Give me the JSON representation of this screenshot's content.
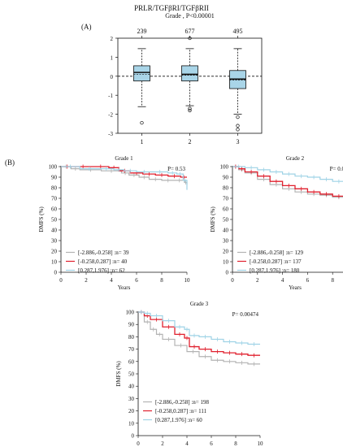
{
  "figure": {
    "title": "PRLR/TGFβRI/TGFβRII",
    "panel_a_label": "(A)",
    "panel_b_label": "(B)"
  },
  "colors": {
    "low": "#b3b3b3",
    "mid": "#e0202e",
    "high": "#9fd3e6",
    "box_fill": "#a9d5e8",
    "axis": "#111111"
  },
  "chart_data": [
    {
      "type": "box",
      "title": "Grade , P<0.00001",
      "categories": [
        "1",
        "2",
        "3"
      ],
      "counts": [
        "239",
        "677",
        "495"
      ],
      "ylim": [
        -3,
        2
      ],
      "yticks": [
        -3,
        -2,
        -1,
        0,
        1,
        2
      ],
      "reference_line": 0,
      "boxes": [
        {
          "whisker_low": -1.6,
          "q1": -0.25,
          "median": 0.2,
          "mean": 0.1,
          "q3": 0.55,
          "whisker_high": 1.45,
          "outliers": [
            -2.45
          ]
        },
        {
          "whisker_low": -1.55,
          "q1": -0.25,
          "median": 0.1,
          "mean": 0.05,
          "q3": 0.55,
          "whisker_high": 1.45,
          "outliers": [
            2.0,
            -1.7,
            -1.8
          ]
        },
        {
          "whisker_low": -2.0,
          "q1": -0.65,
          "median": -0.15,
          "mean": -0.2,
          "q3": 0.3,
          "whisker_high": 1.45,
          "outliers": [
            -2.15,
            -2.6,
            -2.8
          ]
        }
      ]
    },
    {
      "type": "line",
      "title": "Grade 1",
      "pvalue": "P= 0.53",
      "xlabel": "Years",
      "ylabel": "DMFS (%)",
      "xlim": [
        0,
        10
      ],
      "ylim": [
        0,
        100
      ],
      "xticks": [
        0,
        2,
        4,
        6,
        8,
        10
      ],
      "yticks": [
        0,
        10,
        20,
        30,
        40,
        50,
        60,
        70,
        80,
        90,
        100
      ],
      "series": [
        {
          "name": "[-2.886,-0.258] :n= 39",
          "color_key": "low",
          "x": [
            0,
            0.8,
            1.5,
            3.2,
            4.8,
            5.4,
            6.2,
            7.0,
            8.0,
            9.0,
            9.8,
            10
          ],
          "y": [
            100,
            98,
            97,
            96,
            94,
            92,
            90,
            88,
            87,
            87,
            85,
            83
          ]
        },
        {
          "name": "[-0.258,0.287] :n= 40",
          "color_key": "mid",
          "x": [
            0,
            1.0,
            2.5,
            3.8,
            4.6,
            5.5,
            6.5,
            7.5,
            8.5,
            9.5,
            10
          ],
          "y": [
            100,
            100,
            100,
            99,
            96,
            94,
            93,
            92,
            91,
            90,
            90
          ]
        },
        {
          "name": "[0.287,1.976] :n= 62",
          "color_key": "high",
          "x": [
            0,
            1.5,
            3.0,
            4.2,
            5.0,
            6.0,
            7.2,
            8.5,
            9.2,
            9.7,
            10
          ],
          "y": [
            100,
            98,
            98,
            97,
            96,
            95,
            95,
            94,
            93,
            87,
            78
          ]
        }
      ]
    },
    {
      "type": "line",
      "title": "Grade 2",
      "pvalue": "P= 0.00454",
      "xlabel": "Years",
      "ylabel": "DMFS (%)",
      "xlim": [
        0,
        10
      ],
      "ylim": [
        0,
        100
      ],
      "xticks": [
        0,
        2,
        4,
        6,
        8,
        10
      ],
      "yticks": [
        0,
        10,
        20,
        30,
        40,
        50,
        60,
        70,
        80,
        90,
        100
      ],
      "series": [
        {
          "name": "[-2.886,-0.258] :n= 129",
          "color_key": "low",
          "x": [
            0,
            0.5,
            1.0,
            2.0,
            3.0,
            4.0,
            5.0,
            6.0,
            7.0,
            8.0,
            9.0,
            10
          ],
          "y": [
            100,
            97,
            94,
            88,
            83,
            79,
            76,
            74,
            73,
            71,
            70,
            70
          ]
        },
        {
          "name": "[-0.258,0.287] :n= 137",
          "color_key": "mid",
          "x": [
            0,
            0.5,
            1.0,
            2.0,
            3.0,
            4.0,
            5.0,
            6.0,
            7.0,
            8.0,
            9.0,
            10
          ],
          "y": [
            100,
            98,
            95,
            91,
            86,
            82,
            79,
            76,
            74,
            72,
            71,
            71
          ]
        },
        {
          "name": "[0.287,1.976] :n= 180",
          "color_key": "high",
          "x": [
            0,
            1.0,
            2.0,
            3.0,
            4.0,
            5.0,
            6.0,
            7.0,
            8.0,
            9.0,
            10
          ],
          "y": [
            100,
            99,
            97,
            95,
            93,
            91,
            90,
            88,
            86,
            83,
            80
          ]
        }
      ]
    },
    {
      "type": "line",
      "title": "Grade 3",
      "pvalue": "P= 0.00474",
      "xlabel": "Years",
      "ylabel": "DMFS (%)",
      "xlim": [
        0,
        10
      ],
      "ylim": [
        0,
        100
      ],
      "xticks": [
        0,
        2,
        4,
        6,
        8,
        10
      ],
      "yticks": [
        0,
        10,
        20,
        30,
        40,
        50,
        60,
        70,
        80,
        90,
        100
      ],
      "series": [
        {
          "name": "[-2.886,-0.258] :n= 198",
          "color_key": "low",
          "x": [
            0,
            0.5,
            1.0,
            1.5,
            2.0,
            3.0,
            4.0,
            5.0,
            6.0,
            7.0,
            8.0,
            9.0,
            10
          ],
          "y": [
            100,
            92,
            86,
            82,
            78,
            73,
            68,
            64,
            61,
            60,
            59,
            58,
            58
          ]
        },
        {
          "name": "[-0.258,0.287] :n= 111",
          "color_key": "mid",
          "x": [
            0,
            0.5,
            1.0,
            2.0,
            3.0,
            3.8,
            4.2,
            5.0,
            6.0,
            7.0,
            8.0,
            9.0,
            10
          ],
          "y": [
            100,
            97,
            94,
            88,
            82,
            79,
            72,
            70,
            68,
            67,
            66,
            65,
            65
          ]
        },
        {
          "name": "[0.287,1.976] :n= 60",
          "color_key": "high",
          "x": [
            0,
            0.5,
            1.0,
            2.0,
            3.0,
            3.8,
            4.2,
            5.0,
            6.0,
            7.0,
            8.0,
            9.0,
            10
          ],
          "y": [
            100,
            99,
            97,
            93,
            88,
            86,
            81,
            80,
            78,
            76,
            75,
            74,
            74
          ]
        }
      ]
    }
  ]
}
